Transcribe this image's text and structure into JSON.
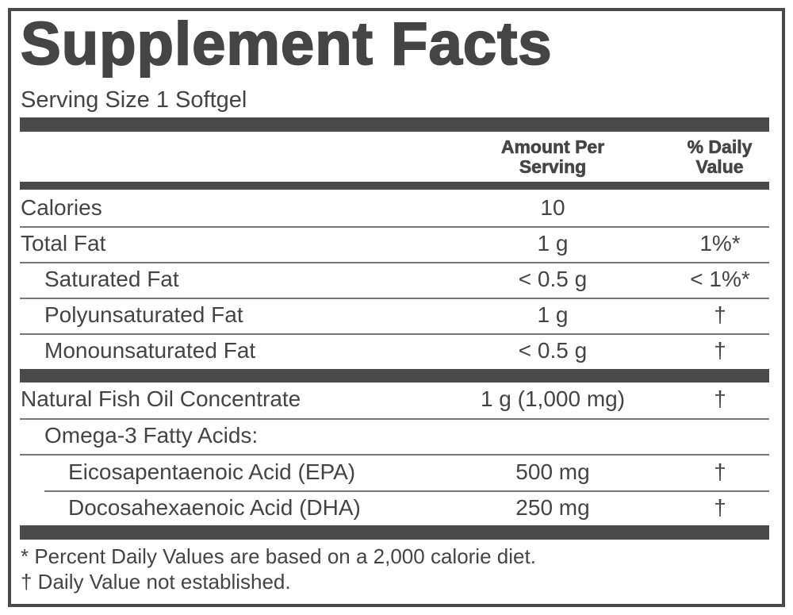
{
  "header": {
    "title": "Supplement Facts",
    "serving_size": "Serving Size 1 Softgel"
  },
  "table": {
    "columns": [
      "Amount Per Serving",
      "% Daily Value"
    ],
    "rows": [
      [
        "Calories",
        "10"
      ],
      [
        "Total Fat",
        "1 g",
        "1%*"
      ],
      [
        "Saturated Fat",
        "< 0.5 g",
        "< 1%*"
      ],
      [
        "Polyunsaturated Fat",
        "1 g",
        "†"
      ],
      [
        "Monounsaturated Fat",
        "< 0.5 g",
        "†"
      ],
      [
        "Natural Fish Oil Concentrate",
        "1 g (1,000 mg)",
        "†"
      ],
      [
        "Omega-3 Fatty Acids:"
      ],
      [
        "Eicosapentaenoic Acid (EPA)",
        "500 mg",
        "†"
      ],
      [
        "Docosahexaenoic Acid (DHA)",
        "250 mg",
        "†"
      ]
    ]
  },
  "footnotes": [
    "* Percent Daily Values are based on a 2,000 calorie diet.",
    "† Daily Value not established."
  ]
}
